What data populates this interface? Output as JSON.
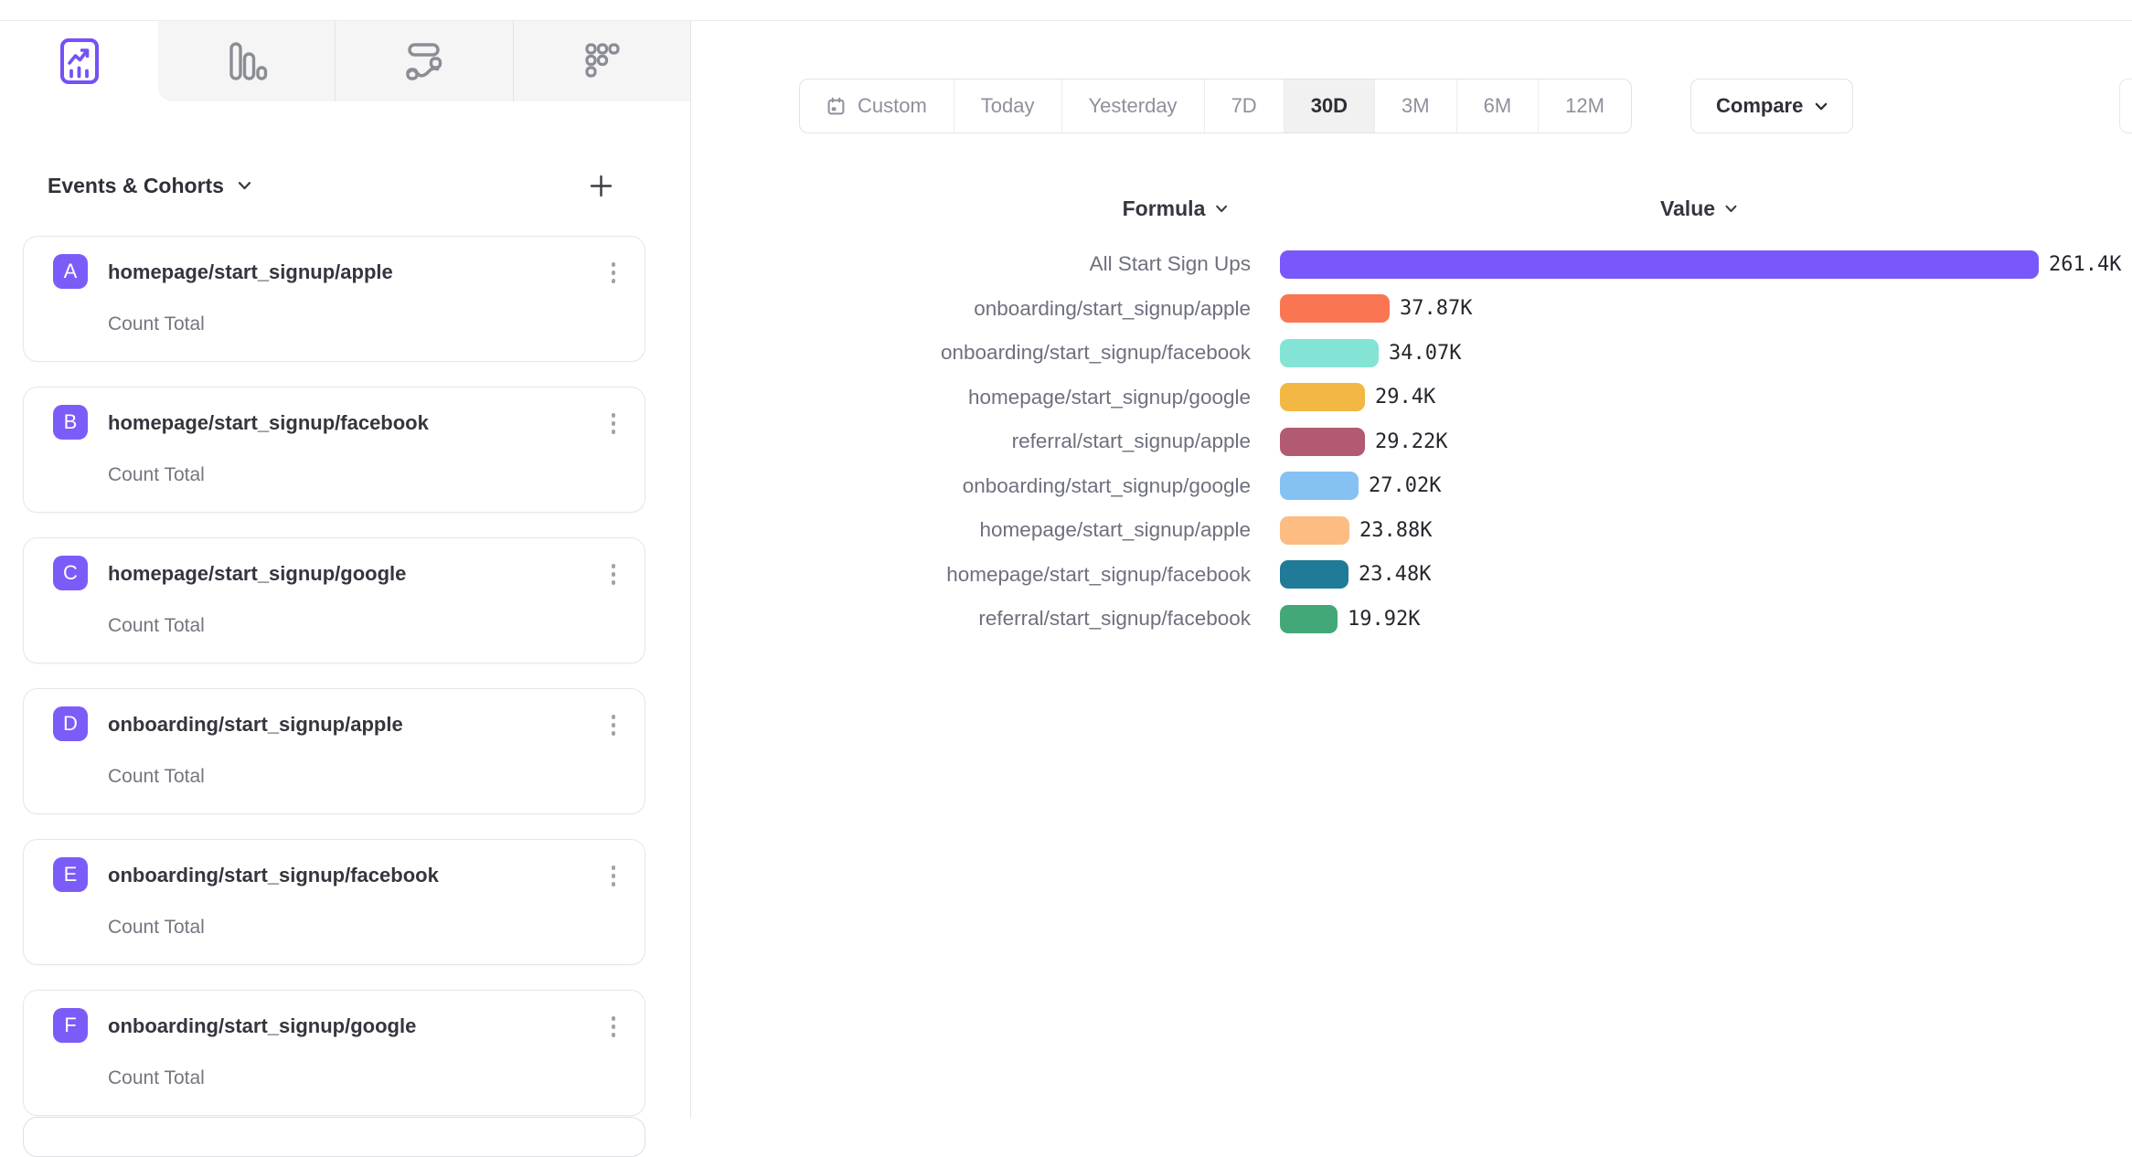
{
  "report_tabs": [
    {
      "id": "insights",
      "icon": "insights-icon",
      "active": true
    },
    {
      "id": "bar-report",
      "icon": "bar-chart-icon",
      "active": false
    },
    {
      "id": "flows",
      "icon": "flows-icon",
      "active": false
    },
    {
      "id": "retention",
      "icon": "retention-icon",
      "active": false
    }
  ],
  "sidebar": {
    "header": {
      "title": "Events & Cohorts"
    },
    "badge_color": "#7c5cf9",
    "events": [
      {
        "letter": "A",
        "name": "homepage/start_signup/apple",
        "metric": "Count Total"
      },
      {
        "letter": "B",
        "name": "homepage/start_signup/facebook",
        "metric": "Count Total"
      },
      {
        "letter": "C",
        "name": "homepage/start_signup/google",
        "metric": "Count Total"
      },
      {
        "letter": "D",
        "name": "onboarding/start_signup/apple",
        "metric": "Count Total"
      },
      {
        "letter": "E",
        "name": "onboarding/start_signup/facebook",
        "metric": "Count Total"
      },
      {
        "letter": "F",
        "name": "onboarding/start_signup/google",
        "metric": "Count Total"
      }
    ]
  },
  "toolbar": {
    "date_ranges": [
      "Custom",
      "Today",
      "Yesterday",
      "7D",
      "30D",
      "3M",
      "6M",
      "12M"
    ],
    "active_range": "30D",
    "compare_label": "Compare"
  },
  "chart_data": {
    "type": "bar",
    "orientation": "horizontal",
    "column_headers": {
      "formula": "Formula",
      "value": "Value"
    },
    "categories": [
      "All Start Sign Ups",
      "onboarding/start_signup/apple",
      "onboarding/start_signup/facebook",
      "homepage/start_signup/google",
      "referral/start_signup/apple",
      "onboarding/start_signup/google",
      "homepage/start_signup/apple",
      "homepage/start_signup/facebook",
      "referral/start_signup/facebook"
    ],
    "values": [
      261400,
      37870,
      34070,
      29400,
      29220,
      27020,
      23880,
      23480,
      19920
    ],
    "value_labels": [
      "261.4K",
      "37.87K",
      "34.07K",
      "29.4K",
      "29.22K",
      "27.02K",
      "23.88K",
      "23.48K",
      "19.92K"
    ],
    "bar_colors": [
      "#7a57fb",
      "#fa7552",
      "#83e3d4",
      "#f2b843",
      "#b25a71",
      "#85c1f2",
      "#fcbc82",
      "#1f7b97",
      "#42a878"
    ],
    "xlim": [
      0,
      261400
    ],
    "grid": false,
    "legend": "none"
  }
}
